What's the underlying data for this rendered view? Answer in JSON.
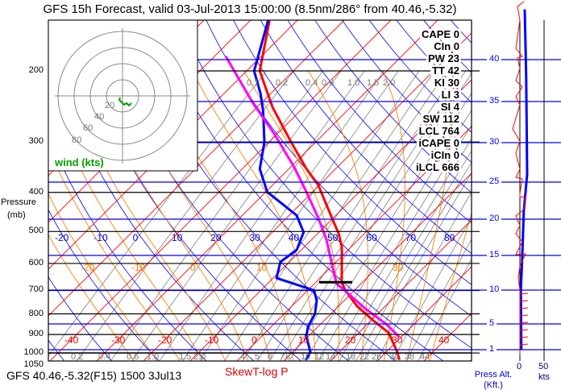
{
  "header": {
    "title": "GFS 15h Forecast, valid 03-Jul-2013 15:00:00 (8.5nm/286° from 40.46,-5.32)"
  },
  "footer": {
    "station": "GFS 40.46,-5.32(F15) 1500 3Jul13",
    "diagram_name": "SkewT-log P"
  },
  "axis": {
    "pressure_label": "Pressure",
    "pressure_unit": "(mb)",
    "press_alt_label": "Press Alt.",
    "press_alt_unit": "(Kft.)",
    "kts_label": "kts"
  },
  "hodograph": {
    "label": "wind (kts)",
    "rings": [
      "20",
      "40",
      "60",
      "80"
    ]
  },
  "stats": [
    {
      "label": "CAPE",
      "value": "0"
    },
    {
      "label": "CIn",
      "value": "0"
    },
    {
      "label": "PW",
      "value": "23"
    },
    {
      "label": "TT",
      "value": "42"
    },
    {
      "label": "KI",
      "value": "30"
    },
    {
      "label": "LI",
      "value": "3"
    },
    {
      "label": "SI",
      "value": "4"
    },
    {
      "label": "SW",
      "value": "112"
    },
    {
      "label": "LCL",
      "value": "764"
    },
    {
      "label": "iCAPE",
      "value": "0"
    },
    {
      "label": "iCIn",
      "value": "0"
    },
    {
      "label": "iLCL",
      "value": "666"
    }
  ],
  "colors": {
    "temperature": "#ff0000",
    "dewpoint": "#0000ff",
    "parcel": "#ff00ff",
    "isotherm": "#ff0000",
    "dry_adiabat": "#0000ff",
    "moist_adiabat": "#ff8000",
    "mixing_ratio": "#808080",
    "altitude_line": "#0000ff",
    "hodograph": "#00a000"
  },
  "chart_data": {
    "type": "line",
    "title": "GFS 15h Forecast, valid 03-Jul-2013 15:00:00 (8.5nm/286° from 40.46,-5.32)",
    "xlabel": "SkewT-log P",
    "ylabel": "Pressure (mb)",
    "y_scale": "log",
    "ylim": [
      1050,
      150
    ],
    "grid": true,
    "pressure_ticks": [
      "200",
      "300",
      "400",
      "500",
      "600",
      "700",
      "800",
      "900",
      "1000",
      "1050"
    ],
    "isotherm_labels": [
      "-40",
      "-30",
      "-20",
      "-10",
      "0",
      "10",
      "20",
      "30",
      "40"
    ],
    "dry_adiabat_labels": [
      "-20",
      "-10",
      "0",
      "10",
      "20",
      "30",
      "40",
      "50",
      "60",
      "70",
      "80"
    ],
    "moist_adiabat_labels": [
      "-20",
      "-10",
      "0",
      "10",
      "30"
    ],
    "mixing_ratio_labels_bottom": [
      "0.2",
      "0.4",
      "0.6",
      "1.0",
      "1.5",
      "2.0",
      "4",
      "5",
      "6",
      "7",
      "8",
      "10",
      "12",
      "14",
      "18",
      "22",
      "26",
      "32",
      "38",
      "44"
    ],
    "mixing_ratio_labels_top": [
      "0.1",
      "0.2",
      "0.4",
      "0.6",
      "1.0",
      "1.5",
      "2.0"
    ],
    "series": [
      {
        "id": "temperature",
        "unit": "°C",
        "points": [
          [
            1040,
            34.5
          ],
          [
            995,
            32.4
          ],
          [
            891,
            26.4
          ],
          [
            828,
            20.2
          ],
          [
            766,
            14.0
          ],
          [
            700,
            8.1
          ],
          [
            667,
            5.5
          ],
          [
            547,
            -1.9
          ],
          [
            506,
            -5.5
          ],
          [
            468,
            -9.7
          ],
          [
            384,
            -20.2
          ],
          [
            350,
            -26.2
          ],
          [
            300,
            -35.3
          ],
          [
            246,
            -46.7
          ],
          [
            200,
            -57.2
          ],
          [
            150,
            -65.9
          ]
        ]
      },
      {
        "id": "dewpoint",
        "unit": "°C",
        "points": [
          [
            1040,
            14.5
          ],
          [
            995,
            13.8
          ],
          [
            908,
            9.5
          ],
          [
            859,
            7.8
          ],
          [
            800,
            6.6
          ],
          [
            741,
            4.1
          ],
          [
            700,
            1.4
          ],
          [
            689,
            -0.9
          ],
          [
            652,
            -9.3
          ],
          [
            595,
            -11.9
          ],
          [
            555,
            -11.0
          ],
          [
            502,
            -13.3
          ],
          [
            456,
            -18.4
          ],
          [
            399,
            -29.7
          ],
          [
            350,
            -36.2
          ],
          [
            300,
            -41.0
          ],
          [
            252,
            -47.8
          ],
          [
            228,
            -52.1
          ],
          [
            200,
            -58.4
          ],
          [
            150,
            -66.2
          ]
        ]
      },
      {
        "id": "parcel",
        "unit": "°C",
        "points": [
          [
            912,
            29.5
          ],
          [
            851,
            24.3
          ],
          [
            776,
            16.2
          ],
          [
            703,
            8.3
          ],
          [
            673,
            4.7
          ],
          [
            617,
            0.7
          ],
          [
            523,
            -6.9
          ],
          [
            462,
            -13.3
          ],
          [
            397,
            -21.6
          ],
          [
            346,
            -29.3
          ],
          [
            287,
            -40.5
          ],
          [
            239,
            -52.1
          ],
          [
            184,
            -67.6
          ]
        ]
      }
    ],
    "lcl_pressure": 668,
    "pressure_altitude_ticks_kft": [
      "40",
      "35",
      "30",
      "25",
      "20",
      "15",
      "10",
      "5",
      "1"
    ],
    "wind_speed_axis": {
      "ticks": [
        "0",
        "50"
      ],
      "unit": "kts"
    },
    "wind_speed_profile": [
      [
        46,
        10
      ],
      [
        38,
        13
      ],
      [
        26,
        15
      ],
      [
        21,
        8
      ],
      [
        15,
        5
      ],
      [
        10,
        2
      ],
      [
        1,
        3
      ]
    ]
  }
}
